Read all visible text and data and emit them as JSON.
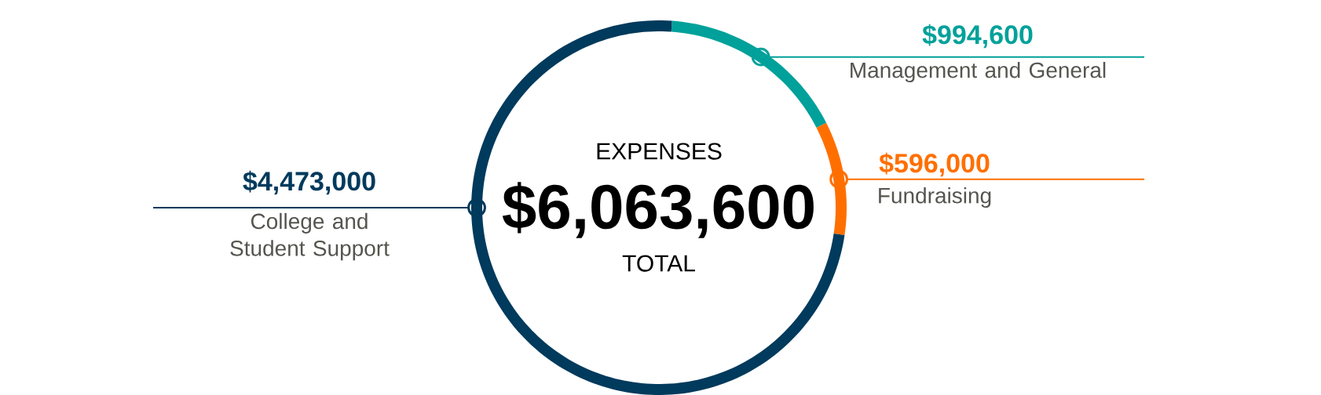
{
  "chart_data": {
    "type": "donut",
    "title": "EXPENSES",
    "categories": [
      "Management and General",
      "Fundraising",
      "College and Student Support"
    ],
    "values": [
      994600,
      596000,
      4473000
    ],
    "value_labels": [
      "$994,600",
      "$596,000",
      "$4,473,000"
    ],
    "colors": [
      "#00a19a",
      "#ff6f00",
      "#003a5c"
    ],
    "annotations": [
      "$6,063,600",
      "TOTAL"
    ]
  }
}
